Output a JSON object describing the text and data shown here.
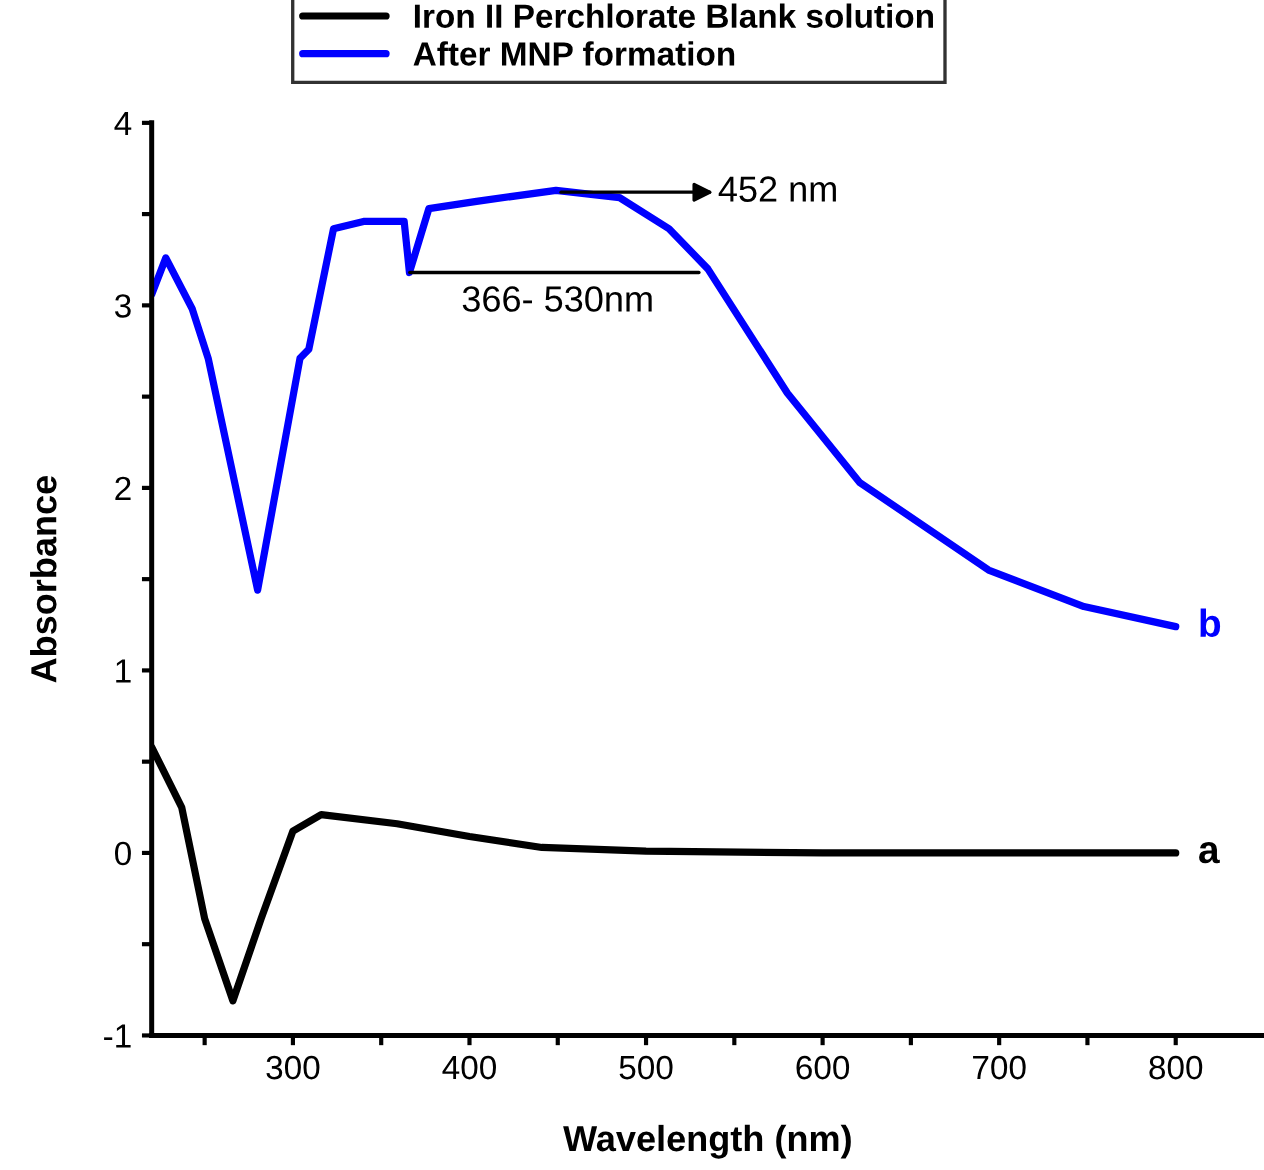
{
  "chart_data": {
    "type": "line",
    "xlabel": "Wavelength (nm)",
    "ylabel": "Absorbance",
    "xlim": [
      220,
      850
    ],
    "ylim": [
      -1,
      4
    ],
    "xticks": [
      {
        "value": 250,
        "label": null
      },
      300,
      {
        "value": 350,
        "label": null
      },
      400,
      {
        "value": 450,
        "label": null
      },
      500,
      {
        "value": 550,
        "label": null
      },
      600,
      {
        "value": 650,
        "label": null
      },
      700,
      {
        "value": 750,
        "label": null
      },
      800
    ],
    "yticks": [
      -1,
      {
        "value": -0.5,
        "label": null
      },
      0,
      {
        "value": 0.5,
        "label": null
      },
      1,
      {
        "value": 1.5,
        "label": null
      },
      2,
      {
        "value": 2.5,
        "label": null
      },
      3,
      {
        "value": 3.5,
        "label": null
      },
      4
    ],
    "grid": false,
    "legend": "top",
    "marker": "none",
    "line_style": "solid",
    "series": [
      {
        "name": "Iron II Perchlorate Blank solution",
        "color": "#000000",
        "x": [
          220,
          237,
          250,
          266,
          282,
          300,
          316,
          359,
          400,
          441,
          500,
          600,
          700,
          800
        ],
        "values": [
          0.58,
          0.25,
          -0.36,
          -0.81,
          -0.36,
          0.12,
          0.21,
          0.16,
          0.09,
          0.03,
          0.01,
          0,
          0,
          0
        ]
      },
      {
        "name": "After MNP formation",
        "color": "#0000ff",
        "x": [
          220,
          228,
          243,
          252,
          280,
          304,
          309,
          323,
          340,
          363,
          366,
          377,
          404,
          449,
          485,
          513,
          535,
          580,
          621,
          694,
          748,
          800
        ],
        "values": [
          3.06,
          3.26,
          2.98,
          2.71,
          1.44,
          2.71,
          2.76,
          3.42,
          3.46,
          3.46,
          3.18,
          3.53,
          3.57,
          3.63,
          3.59,
          3.42,
          3.2,
          2.52,
          2.03,
          1.55,
          1.35,
          1.24
        ]
      }
    ],
    "annotations": [
      "452 nm",
      "366- 530nm",
      {
        "text": "a",
        "x": 800,
        "y": 0
      },
      {
        "text": "b",
        "x": 800,
        "y": 1.24
      }
    ]
  }
}
